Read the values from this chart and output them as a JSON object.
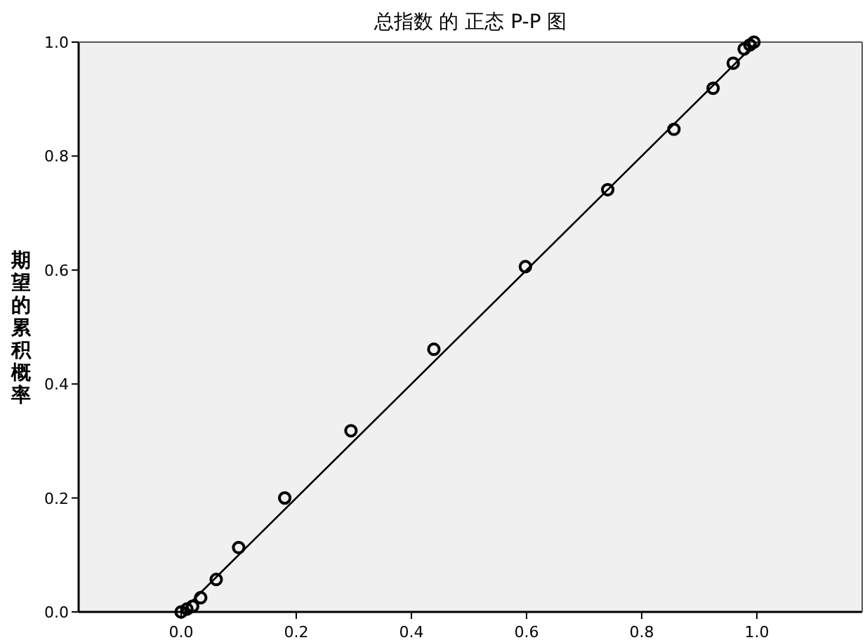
{
  "chart_data": {
    "type": "scatter",
    "title": "总指数 的 正态 P-P 图",
    "ylabel": "期望的累积概率",
    "xlim": [
      -0.178,
      1.183
    ],
    "ylim": [
      0,
      1
    ],
    "xticks": [
      {
        "value": 0,
        "label": "0.0"
      },
      {
        "value": 0.2,
        "label": "0.2"
      },
      {
        "value": 0.4,
        "label": "0.4"
      },
      {
        "value": 0.6,
        "label": "0.6"
      },
      {
        "value": 0.8,
        "label": "0.8"
      },
      {
        "value": 1,
        "label": "1.0"
      }
    ],
    "yticks": [
      {
        "value": 0,
        "label": "0.0"
      },
      {
        "value": 0.2,
        "label": "0.2"
      },
      {
        "value": 0.4,
        "label": "0.4"
      },
      {
        "value": 0.6,
        "label": "0.6"
      },
      {
        "value": 0.8,
        "label": "0.8"
      },
      {
        "value": 1,
        "label": "1.0"
      }
    ],
    "grid": false,
    "series": [
      {
        "marker": "circle",
        "color": "#000000",
        "x": [
          0,
          0.01,
          0.02,
          0.034,
          0.061,
          0.1,
          0.18,
          0.295,
          0.439,
          0.598,
          0.741,
          0.856,
          0.924,
          0.959,
          0.978,
          0.988,
          0.995
        ],
        "values": [
          0,
          0.005,
          0.01,
          0.025,
          0.057,
          0.113,
          0.2,
          0.318,
          0.461,
          0.606,
          0.741,
          0.847,
          0.919,
          0.963,
          0.988,
          0.995,
          1.0
        ]
      },
      {
        "type": "line",
        "color": "#000000",
        "x": [
          0,
          1
        ],
        "values": [
          0,
          1
        ]
      }
    ]
  }
}
